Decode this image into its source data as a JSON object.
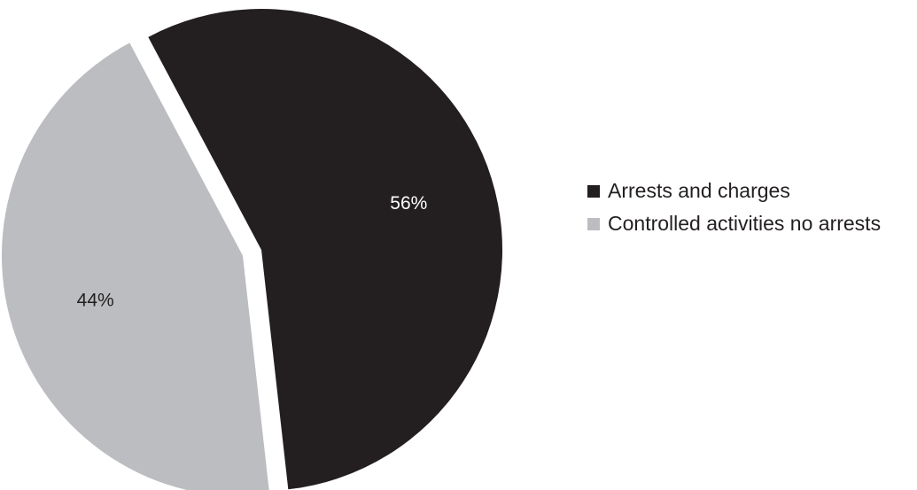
{
  "chart_data": {
    "type": "pie",
    "title": "",
    "slices": [
      {
        "name": "Arrests and charges",
        "value": 56,
        "label": "56%",
        "color": "#231f20",
        "label_color": "#ffffff",
        "exploded": false
      },
      {
        "name": "Controlled activities no arrests",
        "value": 44,
        "label": "44%",
        "color": "#bcbdc0",
        "label_color": "#231f20",
        "exploded": true
      }
    ],
    "start_angle_deg": -28,
    "direction": "clockwise",
    "legend": {
      "placement": "right",
      "items": [
        {
          "label": "Arrests and charges",
          "color": "#231f20"
        },
        {
          "label": "Controlled activities no arrests",
          "color": "#bcbdc0"
        }
      ]
    }
  }
}
